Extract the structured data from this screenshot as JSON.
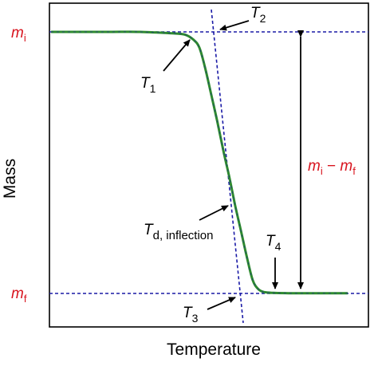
{
  "chart_data": {
    "type": "line",
    "title": "",
    "xlabel": "Temperature",
    "ylabel": "Mass",
    "xlim": [
      0,
      100
    ],
    "ylim": [
      0,
      100
    ],
    "grid": false,
    "ticks_shown": false,
    "series": [
      {
        "color": "#2e8b2e",
        "x": [
          0,
          10,
          20,
          30,
          40,
          45,
          48,
          50,
          52,
          54,
          56,
          58,
          60,
          62,
          64,
          66,
          68,
          70,
          72,
          75,
          80,
          90,
          100
        ],
        "y": [
          100,
          100,
          100,
          100,
          99.5,
          99,
          97,
          94,
          86,
          76,
          66,
          55,
          45,
          34,
          24,
          14,
          5,
          1.5,
          0.5,
          0.2,
          0.1,
          0.1,
          0.1
        ]
      }
    ],
    "reference_lines": {
      "m_i_level": 100,
      "m_f_level": 0,
      "tangent_color": "#1a1aa6"
    },
    "label_color": "#d8141e",
    "labels": {
      "m_i": {
        "symbol": "m",
        "sub": "i"
      },
      "m_f": {
        "symbol": "m",
        "sub": "f"
      },
      "mass_loss": {
        "symbol_a": "m",
        "sub_a": "i",
        "minus": " − ",
        "symbol_b": "m",
        "sub_b": "f"
      },
      "T1": {
        "symbol": "T",
        "sub": "1"
      },
      "T2": {
        "symbol": "T",
        "sub": "2"
      },
      "T3": {
        "symbol": "T",
        "sub": "3"
      },
      "T4": {
        "symbol": "T",
        "sub": "4"
      },
      "Td": {
        "symbol": "T",
        "sub": "d, inflection"
      }
    }
  }
}
